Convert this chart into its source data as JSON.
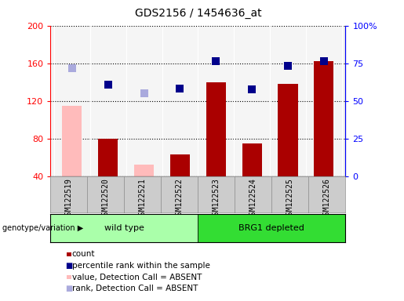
{
  "title": "GDS2156 / 1454636_at",
  "samples": [
    "GSM122519",
    "GSM122520",
    "GSM122521",
    "GSM122522",
    "GSM122523",
    "GSM122524",
    "GSM122525",
    "GSM122526"
  ],
  "bar_values": [
    115,
    80,
    52,
    63,
    140,
    75,
    138,
    162
  ],
  "bar_absent": [
    true,
    false,
    true,
    false,
    false,
    false,
    false,
    false
  ],
  "rank_values": [
    155,
    137,
    128,
    133,
    162,
    132,
    157,
    162
  ],
  "rank_absent": [
    true,
    false,
    true,
    false,
    false,
    false,
    false,
    false
  ],
  "ylim_left": [
    40,
    200
  ],
  "ylim_right": [
    0,
    100
  ],
  "yticks_left": [
    40,
    80,
    120,
    160,
    200
  ],
  "yticks_right": [
    0,
    25,
    50,
    75,
    100
  ],
  "ytick_labels_right": [
    "0",
    "25",
    "50",
    "75",
    "100%"
  ],
  "groups": [
    {
      "label": "wild type",
      "start": 0,
      "end": 4,
      "color": "#aaffaa"
    },
    {
      "label": "BRG1 depleted",
      "start": 4,
      "end": 8,
      "color": "#33dd33"
    }
  ],
  "color_bar_present": "#aa0000",
  "color_bar_absent": "#ffbbbb",
  "color_rank_present": "#00008b",
  "color_rank_absent": "#aaaadd",
  "background_color": "#cccccc",
  "plot_bg": "#f5f5f5",
  "legend_items": [
    {
      "label": "count",
      "color": "#aa0000",
      "type": "bar"
    },
    {
      "label": "percentile rank within the sample",
      "color": "#00008b",
      "type": "square"
    },
    {
      "label": "value, Detection Call = ABSENT",
      "color": "#ffbbbb",
      "type": "bar"
    },
    {
      "label": "rank, Detection Call = ABSENT",
      "color": "#aaaadd",
      "type": "square"
    }
  ],
  "genotype_label": "genotype/variation"
}
